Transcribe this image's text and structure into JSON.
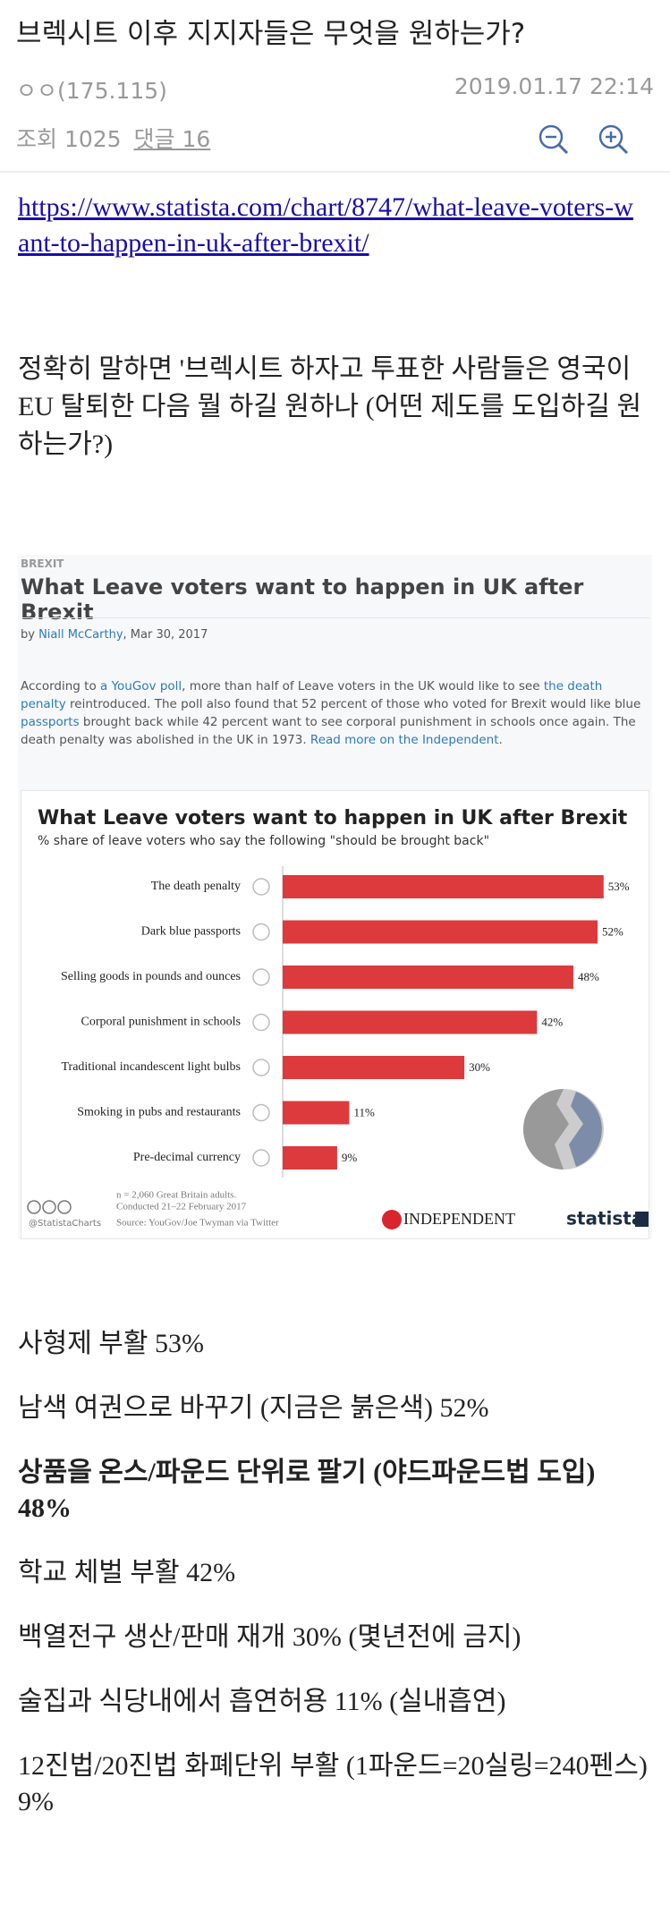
{
  "header": {
    "title": "브렉시트 이후 지지자들은 무엇을 원하는가?",
    "author": "ㅇㅇ",
    "ip": "(175.115)",
    "date": "2019.01.17 22:14",
    "views_label": "조회",
    "views": 1025,
    "comments_label": "댓글",
    "comments": 16
  },
  "link": "https://www.statista.com/chart/8747/what-leave-voters-want-to-happen-in-uk-after-brexit/",
  "intro": "정확히 말하면 '브렉시트 하자고 투표한 사람들은 영국이 EU 탈퇴한 다음 뭘 하길 원하나 (어떤 제도를 도입하길 원하는가?)",
  "figure": {
    "kicker": "BREXIT",
    "title": "What Leave voters want to happen in UK after Brexit",
    "byline": [
      "by ",
      "Niall McCarthy",
      ",  Mar 30, 2017"
    ],
    "description": [
      {
        "text": "According to ",
        "link": false
      },
      {
        "text": "a YouGov poll",
        "link": true
      },
      {
        "text": ", more than half of Leave voters in the UK would like to see ",
        "link": false
      },
      {
        "text": "the death penalty",
        "link": true
      },
      {
        "text": " reintroduced. The poll also found that 52 percent of those who voted for Brexit would like blue ",
        "link": false
      },
      {
        "text": "passports",
        "link": true
      },
      {
        "text": " brought back while 42 percent want to see corporal punishment in schools once again. The death penalty was abolished in the UK in 1973. ",
        "link": false
      },
      {
        "text": "Read more on the Independent",
        "link": true
      },
      {
        "text": ".",
        "link": false
      }
    ],
    "chart_data": {
      "type": "bar",
      "orientation": "horizontal",
      "title": "What Leave voters want to happen in UK after Brexit",
      "subtitle": "% share of leave voters who say the following \"should be brought back\"",
      "categories": [
        "The death penalty",
        "Dark blue passports",
        "Selling goods in pounds and ounces",
        "Corporal punishment in schools",
        "Traditional incandescent light bulbs",
        "Smoking in pubs and restaurants",
        "Pre-decimal currency"
      ],
      "values": [
        53,
        52,
        48,
        42,
        30,
        11,
        9
      ],
      "value_labels": [
        "53%",
        "52%",
        "48%",
        "42%",
        "30%",
        "11%",
        "9%"
      ],
      "color": "#dc3a3d"
    },
    "notes": [
      "n = 2,060 Great Britain adults.",
      "Conducted 21–22 February 2017"
    ],
    "source": "Source: YouGov/Joe Twyman via Twitter",
    "handle": "@StatistaCharts",
    "logos": [
      "INDEPENDENT",
      "statista"
    ]
  },
  "summary": [
    {
      "text": "사형제 부활 53%",
      "bold": false
    },
    {
      "text": "남색 여권으로 바꾸기 (지금은 붉은색) 52%",
      "bold": false
    },
    {
      "text": "상품을 온스/파운드 단위로 팔기 (야드파운드법 도입) 48%",
      "bold": true
    },
    {
      "text": "학교 체벌 부활 42%",
      "bold": false
    },
    {
      "text": "백열전구 생산/판매 재개 30% (몇년전에 금지)",
      "bold": false
    },
    {
      "text": "술집과 식당내에서 흡연허용 11% (실내흡연)",
      "bold": false
    },
    {
      "text": "12진법/20진법 화폐단위 부활 (1파운드=20실링=240펜스) 9%",
      "bold": false
    }
  ]
}
